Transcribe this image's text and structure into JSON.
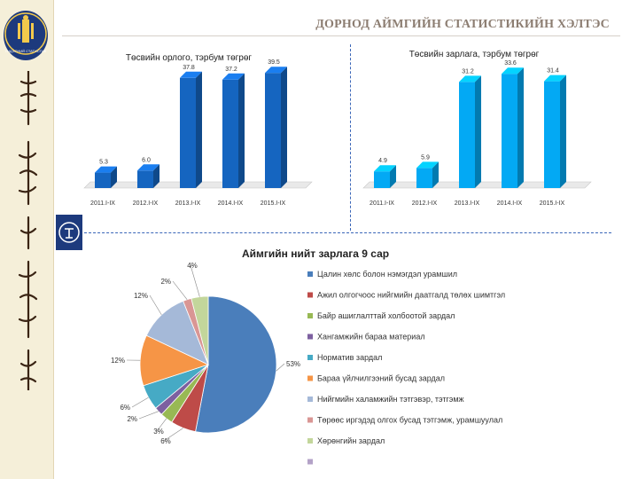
{
  "header": {
    "title": "ДОРНОД АЙМГИЙН СТАТИСТИКИЙН ХЭЛТЭС"
  },
  "logo": {
    "text": "ҮНДЭСНИЙ СТАТИСТИК"
  },
  "colors": {
    "revenue_bar": "#1565c0",
    "expense_bar": "#03a9f4",
    "side_panel": "#f5efd9",
    "brand_navy": "#1d3a7d"
  },
  "icons": {
    "side_icon": "statistics-emblem-icon"
  },
  "chart_data": [
    {
      "type": "bar",
      "title": "Төсвийн орлого, тэрбум төгрөг",
      "categories": [
        "2011.I-IX",
        "2012.I-IX",
        "2013.I-IX",
        "2014.I-IX",
        "2015.I-IX"
      ],
      "values": [
        5.3,
        6.0,
        37.8,
        37.2,
        39.5
      ],
      "value_labels": [
        "5.3",
        "6.0",
        "37.8",
        "37.2",
        "39.5"
      ],
      "ylim": [
        0,
        42
      ]
    },
    {
      "type": "bar",
      "title": "Төсвийн зарлага, тэрбум төгрөг",
      "categories": [
        "2011.I-IX",
        "2012.I-IX",
        "2013.I-IX",
        "2014.I-IX",
        "2015.I-IX"
      ],
      "values": [
        4.9,
        5.9,
        31.2,
        33.6,
        31.4
      ],
      "value_labels": [
        "4.9",
        "5.9",
        "31.2",
        "33.6",
        "31.4"
      ],
      "ylim": [
        0,
        36
      ]
    },
    {
      "type": "pie",
      "title": "Аймгийн нийт зарлага 9 сар",
      "legend_position": "right",
      "slices": [
        {
          "label": "Цалин хөлс болон нэмэгдэл урамшил",
          "value": 53,
          "value_label": "53%",
          "color": "#4a7ebb"
        },
        {
          "label": "Ажил олгогчоос нийгмийн даатгалд төлөх шимтгэл",
          "value": 6,
          "value_label": "6%",
          "color": "#be4b48"
        },
        {
          "label": "Байр ашиглалттай холбоотой зардал",
          "value": 3,
          "value_label": "3%",
          "color": "#98b954"
        },
        {
          "label": "Хангамжийн бараа материал",
          "value": 2,
          "value_label": "2%",
          "color": "#7d60a0"
        },
        {
          "label": "Норматив зардал",
          "value": 6,
          "value_label": "6%",
          "color": "#46aac5"
        },
        {
          "label": "Бараа үйлчилгээний бусад зардал",
          "value": 12,
          "value_label": "12%",
          "color": "#f69546"
        },
        {
          "label": "Нийгмийн халамжийн тэтгэвэр, тэтгэмж",
          "value": 12,
          "value_label": "12%",
          "color": "#a5b9d8"
        },
        {
          "label": "Төрөөс иргэдэд олгох бусад тэтгэмж, урамшуулал",
          "value": 2,
          "value_label": "2%",
          "color": "#d99694"
        },
        {
          "label": "Хөрөнгийн зардал",
          "value": 4,
          "value_label": "4%",
          "color": "#c3d69b"
        },
        {
          "label": "",
          "value": 0,
          "value_label": "",
          "color": "#b3a2c7"
        }
      ]
    }
  ]
}
